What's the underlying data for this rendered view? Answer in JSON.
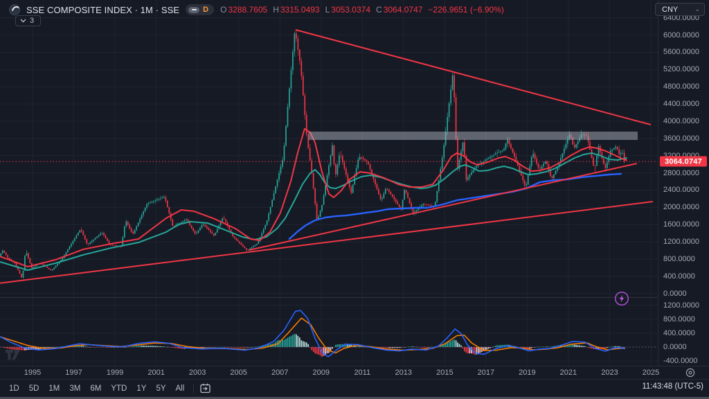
{
  "header": {
    "symbol_title": "SSE COMPOSITE INDEX · 1M · SSE",
    "resolution_badge": "D",
    "ohlc": {
      "o_label": "O",
      "o": "3288.7605",
      "h_label": "H",
      "h": "3315.0493",
      "l_label": "L",
      "l": "3053.0374",
      "c_label": "C",
      "c": "3064.0747",
      "change": "−226.9651 (−6.90%)"
    },
    "collapsed_indicators_count": "3",
    "currency_button": "CNY"
  },
  "price_scale": {
    "current_price_label": "3064.0747",
    "main_ticks": [
      6400,
      6000,
      5600,
      5200,
      4800,
      4400,
      4000,
      3600,
      3200,
      2800,
      2400,
      2000,
      1600,
      1200,
      800,
      400,
      0
    ],
    "sub_ticks": [
      1200,
      800,
      400,
      0,
      -400
    ]
  },
  "time_scale": {
    "years": [
      1995,
      1997,
      1999,
      2001,
      2003,
      2005,
      2007,
      2009,
      2011,
      2013,
      2015,
      2017,
      2019,
      2021,
      2023,
      2025
    ]
  },
  "toolbar": {
    "ranges": [
      "1D",
      "5D",
      "1M",
      "3M",
      "6M",
      "YTD",
      "1Y",
      "5Y",
      "All"
    ],
    "clock": "11:43:48 (UTC-5)"
  },
  "colors": {
    "background": "#161a25",
    "grid": "#1f2430",
    "up": "#26a69a",
    "down": "#f23645",
    "ma_fast": "#f23645",
    "ma_slow": "#26a69a",
    "ma_long": "#2962ff",
    "macd_line": "#2962ff",
    "signal_line": "#f57c00",
    "hist_pos": "#26a69a",
    "hist_pos_weak": "#b2dfdb",
    "hist_neg": "#f23645",
    "hist_neg_weak": "#f5c6cb",
    "trendline": "#f23645",
    "zone_fill": "rgba(168,174,186,0.5)",
    "last_price_bg": "#f23645"
  },
  "chart_data": {
    "type": "candlestick",
    "title": "SSE Composite Index, monthly",
    "x_unit": "year",
    "x_range": [
      1993.42,
      2025.8
    ],
    "bar_interval_years": 0.08333,
    "y_axis": {
      "min": 0,
      "max": 6400,
      "step": 400
    },
    "last_price": 3064.0747,
    "price_path": [
      [
        1993.42,
        870
      ],
      [
        1993.6,
        1005
      ],
      [
        1993.85,
        820
      ],
      [
        1994.2,
        690
      ],
      [
        1994.54,
        333
      ],
      [
        1994.7,
        1010
      ],
      [
        1995.0,
        590
      ],
      [
        1995.4,
        715
      ],
      [
        1995.95,
        530
      ],
      [
        1996.5,
        820
      ],
      [
        1996.95,
        1180
      ],
      [
        1997.37,
        1500
      ],
      [
        1997.7,
        1130
      ],
      [
        1998.4,
        1420
      ],
      [
        1998.8,
        1130
      ],
      [
        1999.35,
        1090
      ],
      [
        1999.55,
        1705
      ],
      [
        1999.9,
        1370
      ],
      [
        2000.6,
        2090
      ],
      [
        2001.45,
        2245
      ],
      [
        2001.85,
        1550
      ],
      [
        2002.5,
        1720
      ],
      [
        2002.95,
        1370
      ],
      [
        2003.3,
        1620
      ],
      [
        2003.85,
        1340
      ],
      [
        2004.28,
        1780
      ],
      [
        2004.75,
        1330
      ],
      [
        2005.45,
        998
      ],
      [
        2005.95,
        1160
      ],
      [
        2006.4,
        1660
      ],
      [
        2006.95,
        2700
      ],
      [
        2007.2,
        3150
      ],
      [
        2007.42,
        4330
      ],
      [
        2007.77,
        6124
      ],
      [
        2008.05,
        5250
      ],
      [
        2008.35,
        3620
      ],
      [
        2008.6,
        2750
      ],
      [
        2008.85,
        1664
      ],
      [
        2009.1,
        2080
      ],
      [
        2009.6,
        3478
      ],
      [
        2009.72,
        2680
      ],
      [
        2009.95,
        3280
      ],
      [
        2010.5,
        2330
      ],
      [
        2010.87,
        3180
      ],
      [
        2011.3,
        3050
      ],
      [
        2011.95,
        2150
      ],
      [
        2012.2,
        2460
      ],
      [
        2012.92,
        1949
      ],
      [
        2013.1,
        2440
      ],
      [
        2013.5,
        1860
      ],
      [
        2014.0,
        2080
      ],
      [
        2014.55,
        2010
      ],
      [
        2014.95,
        3240
      ],
      [
        2015.45,
        5178
      ],
      [
        2015.65,
        2850
      ],
      [
        2015.95,
        3580
      ],
      [
        2016.08,
        2638
      ],
      [
        2016.55,
        2950
      ],
      [
        2017.0,
        3100
      ],
      [
        2017.5,
        3250
      ],
      [
        2017.9,
        3330
      ],
      [
        2018.07,
        3587
      ],
      [
        2018.5,
        3080
      ],
      [
        2018.97,
        2440
      ],
      [
        2019.3,
        3288
      ],
      [
        2019.62,
        2860
      ],
      [
        2019.95,
        3090
      ],
      [
        2020.22,
        2646
      ],
      [
        2020.55,
        2980
      ],
      [
        2020.9,
        3450
      ],
      [
        2021.12,
        3731
      ],
      [
        2021.3,
        3357
      ],
      [
        2021.7,
        3715
      ],
      [
        2021.95,
        3640
      ],
      [
        2022.3,
        2863
      ],
      [
        2022.5,
        3424
      ],
      [
        2022.82,
        2885
      ],
      [
        2023.08,
        3310
      ],
      [
        2023.37,
        3418
      ],
      [
        2023.5,
        3230
      ],
      [
        2023.66,
        3289
      ],
      [
        2023.75,
        3064
      ]
    ],
    "ma_fast_red": [
      [
        1993.42,
        863
      ],
      [
        1994.77,
        622
      ],
      [
        1996.11,
        783
      ],
      [
        1997.45,
        1024
      ],
      [
        1998.8,
        1153
      ],
      [
        2000.14,
        1266
      ],
      [
        2001.48,
        1748
      ],
      [
        2002.22,
        1941
      ],
      [
        2002.83,
        1909
      ],
      [
        2003.83,
        1732
      ],
      [
        2004.84,
        1507
      ],
      [
        2005.58,
        1266
      ],
      [
        2006.02,
        1233
      ],
      [
        2006.52,
        1426
      ],
      [
        2007.03,
        1877
      ],
      [
        2007.53,
        2600
      ],
      [
        2007.87,
        3276
      ],
      [
        2008.2,
        3823
      ],
      [
        2008.47,
        3742
      ],
      [
        2008.71,
        3501
      ],
      [
        2009.04,
        2826
      ],
      [
        2009.38,
        2311
      ],
      [
        2009.61,
        2231
      ],
      [
        2009.95,
        2375
      ],
      [
        2010.39,
        2649
      ],
      [
        2010.89,
        2826
      ],
      [
        2011.39,
        2793
      ],
      [
        2012.07,
        2681
      ],
      [
        2012.74,
        2536
      ],
      [
        2013.31,
        2472
      ],
      [
        2013.91,
        2472
      ],
      [
        2014.42,
        2536
      ],
      [
        2014.92,
        2858
      ],
      [
        2015.32,
        3179
      ],
      [
        2015.59,
        3260
      ],
      [
        2015.86,
        3211
      ],
      [
        2016.26,
        3051
      ],
      [
        2016.6,
        2986
      ],
      [
        2017.1,
        3051
      ],
      [
        2017.61,
        3147
      ],
      [
        2017.94,
        3179
      ],
      [
        2018.35,
        3099
      ],
      [
        2018.78,
        2954
      ],
      [
        2019.22,
        2841
      ],
      [
        2019.62,
        2858
      ],
      [
        2020.13,
        2922
      ],
      [
        2020.63,
        3051
      ],
      [
        2021.14,
        3211
      ],
      [
        2021.64,
        3340
      ],
      [
        2022.04,
        3404
      ],
      [
        2022.38,
        3372
      ],
      [
        2022.81,
        3308
      ],
      [
        2023.25,
        3211
      ],
      [
        2023.59,
        3131
      ],
      [
        2023.82,
        3099
      ]
    ],
    "ma_slow_teal": [
      [
        1993.42,
        735
      ],
      [
        1994.77,
        542
      ],
      [
        1996.11,
        703
      ],
      [
        1997.45,
        896
      ],
      [
        1998.8,
        1056
      ],
      [
        2000.14,
        1185
      ],
      [
        2001.48,
        1426
      ],
      [
        2002.09,
        1603
      ],
      [
        2002.66,
        1668
      ],
      [
        2003.5,
        1635
      ],
      [
        2004.34,
        1475
      ],
      [
        2005.18,
        1314
      ],
      [
        2005.78,
        1249
      ],
      [
        2006.35,
        1314
      ],
      [
        2006.86,
        1507
      ],
      [
        2007.26,
        1748
      ],
      [
        2007.7,
        2150
      ],
      [
        2008.1,
        2536
      ],
      [
        2008.47,
        2793
      ],
      [
        2008.71,
        2874
      ],
      [
        2008.94,
        2761
      ],
      [
        2009.21,
        2552
      ],
      [
        2009.45,
        2455
      ],
      [
        2009.71,
        2439
      ],
      [
        2010.05,
        2504
      ],
      [
        2010.49,
        2616
      ],
      [
        2010.96,
        2713
      ],
      [
        2011.39,
        2745
      ],
      [
        2011.9,
        2697
      ],
      [
        2012.4,
        2616
      ],
      [
        2012.9,
        2536
      ],
      [
        2013.41,
        2472
      ],
      [
        2013.85,
        2440
      ],
      [
        2014.18,
        2456
      ],
      [
        2014.58,
        2520
      ],
      [
        2014.99,
        2665
      ],
      [
        2015.42,
        2841
      ],
      [
        2015.76,
        2954
      ],
      [
        2015.99,
        2986
      ],
      [
        2016.33,
        2922
      ],
      [
        2016.67,
        2841
      ],
      [
        2017.1,
        2858
      ],
      [
        2017.54,
        2922
      ],
      [
        2017.88,
        2954
      ],
      [
        2018.28,
        2906
      ],
      [
        2018.68,
        2825
      ],
      [
        2019.05,
        2761
      ],
      [
        2019.45,
        2777
      ],
      [
        2019.89,
        2825
      ],
      [
        2020.29,
        2890
      ],
      [
        2020.8,
        3018
      ],
      [
        2021.3,
        3147
      ],
      [
        2021.74,
        3227
      ],
      [
        2022.14,
        3260
      ],
      [
        2022.58,
        3195
      ],
      [
        2022.98,
        3115
      ],
      [
        2023.38,
        3099
      ],
      [
        2023.82,
        3147
      ]
    ],
    "ma_long_blue": [
      [
        2007.46,
        1266
      ],
      [
        2007.87,
        1443
      ],
      [
        2008.27,
        1587
      ],
      [
        2008.71,
        1700
      ],
      [
        2009.21,
        1764
      ],
      [
        2009.71,
        1796
      ],
      [
        2010.22,
        1812
      ],
      [
        2010.72,
        1844
      ],
      [
        2011.22,
        1877
      ],
      [
        2011.73,
        1909
      ],
      [
        2012.23,
        1957
      ],
      [
        2012.9,
        1973
      ],
      [
        2013.58,
        1989
      ],
      [
        2014.15,
        1989
      ],
      [
        2014.92,
        2070
      ],
      [
        2015.59,
        2166
      ],
      [
        2016.26,
        2214
      ],
      [
        2016.94,
        2263
      ],
      [
        2017.61,
        2311
      ],
      [
        2018.28,
        2359
      ],
      [
        2018.95,
        2439
      ],
      [
        2019.62,
        2584
      ],
      [
        2020.3,
        2632
      ],
      [
        2020.97,
        2649
      ],
      [
        2021.64,
        2697
      ],
      [
        2022.31,
        2729
      ],
      [
        2022.98,
        2761
      ],
      [
        2023.55,
        2777
      ]
    ],
    "trendlines": [
      {
        "name": "upper-descending",
        "from": [
          2007.76,
          6122
        ],
        "to": [
          2025.0,
          3919
        ]
      },
      {
        "name": "lower-ascending-long",
        "from": [
          1993.42,
          241
        ],
        "to": [
          2025.1,
          2134
        ]
      },
      {
        "name": "lower-ascending-steep",
        "from": [
          2005.51,
          1008
        ],
        "to": [
          2024.32,
          3018
        ]
      }
    ],
    "supply_zone": {
      "t_from": 2008.4,
      "t_to": 2024.36,
      "price_from": 3565,
      "price_to": 3758
    },
    "macd": {
      "type": "macd",
      "y_ticks": [
        1200,
        800,
        400,
        0,
        -400
      ],
      "macd_anchors": [
        [
          1993.42,
          300
        ],
        [
          1994.0,
          120
        ],
        [
          1994.6,
          -20
        ],
        [
          1995.3,
          -85
        ],
        [
          1996.1,
          -45
        ],
        [
          1996.8,
          40
        ],
        [
          1997.3,
          95
        ],
        [
          1998.0,
          55
        ],
        [
          1998.8,
          15
        ],
        [
          1999.4,
          10
        ],
        [
          2000.2,
          110
        ],
        [
          2000.9,
          150
        ],
        [
          2001.6,
          110
        ],
        [
          2002.3,
          -15
        ],
        [
          2003.2,
          -55
        ],
        [
          2004.2,
          -35
        ],
        [
          2005.3,
          -90
        ],
        [
          2006.0,
          -20
        ],
        [
          2006.7,
          160
        ],
        [
          2007.2,
          480
        ],
        [
          2007.75,
          1020
        ],
        [
          2008.0,
          1050
        ],
        [
          2008.35,
          820
        ],
        [
          2008.7,
          260
        ],
        [
          2009.05,
          -160
        ],
        [
          2009.35,
          -280
        ],
        [
          2009.8,
          -60
        ],
        [
          2010.2,
          80
        ],
        [
          2010.8,
          70
        ],
        [
          2011.5,
          -20
        ],
        [
          2012.2,
          -90
        ],
        [
          2012.8,
          -110
        ],
        [
          2013.4,
          -60
        ],
        [
          2014.1,
          -85
        ],
        [
          2014.7,
          30
        ],
        [
          2015.1,
          250
        ],
        [
          2015.5,
          520
        ],
        [
          2015.8,
          380
        ],
        [
          2016.1,
          60
        ],
        [
          2016.5,
          -180
        ],
        [
          2016.9,
          -210
        ],
        [
          2017.5,
          -40
        ],
        [
          2018.1,
          40
        ],
        [
          2018.7,
          -40
        ],
        [
          2019.1,
          -110
        ],
        [
          2019.6,
          -60
        ],
        [
          2020.1,
          -40
        ],
        [
          2020.7,
          60
        ],
        [
          2021.2,
          160
        ],
        [
          2021.8,
          140
        ],
        [
          2022.3,
          -40
        ],
        [
          2022.8,
          -120
        ],
        [
          2023.2,
          -30
        ],
        [
          2023.5,
          -20
        ],
        [
          2023.75,
          -50
        ]
      ],
      "signal_anchors": [
        [
          1993.42,
          295
        ],
        [
          1994.1,
          170
        ],
        [
          1994.8,
          40
        ],
        [
          1995.6,
          -45
        ],
        [
          1996.4,
          -25
        ],
        [
          1997.1,
          40
        ],
        [
          1997.7,
          70
        ],
        [
          1998.5,
          40
        ],
        [
          1999.3,
          15
        ],
        [
          2000.1,
          60
        ],
        [
          2000.9,
          115
        ],
        [
          2001.7,
          105
        ],
        [
          2002.5,
          15
        ],
        [
          2003.4,
          -40
        ],
        [
          2004.4,
          -40
        ],
        [
          2005.4,
          -70
        ],
        [
          2006.2,
          -25
        ],
        [
          2006.9,
          90
        ],
        [
          2007.4,
          400
        ],
        [
          2008.05,
          830
        ],
        [
          2008.5,
          640
        ],
        [
          2008.9,
          240
        ],
        [
          2009.3,
          -80
        ],
        [
          2009.7,
          -170
        ],
        [
          2010.1,
          -40
        ],
        [
          2010.7,
          50
        ],
        [
          2011.4,
          10
        ],
        [
          2012.2,
          -60
        ],
        [
          2013.0,
          -90
        ],
        [
          2013.7,
          -70
        ],
        [
          2014.4,
          -40
        ],
        [
          2015.0,
          90
        ],
        [
          2015.6,
          330
        ],
        [
          2015.95,
          340
        ],
        [
          2016.3,
          120
        ],
        [
          2016.9,
          -100
        ],
        [
          2017.5,
          -90
        ],
        [
          2018.2,
          -20
        ],
        [
          2018.8,
          -30
        ],
        [
          2019.3,
          -80
        ],
        [
          2019.9,
          -60
        ],
        [
          2020.5,
          -20
        ],
        [
          2021.1,
          80
        ],
        [
          2021.9,
          120
        ],
        [
          2022.4,
          0
        ],
        [
          2022.9,
          -80
        ],
        [
          2023.3,
          -50
        ],
        [
          2023.75,
          -30
        ]
      ]
    }
  }
}
